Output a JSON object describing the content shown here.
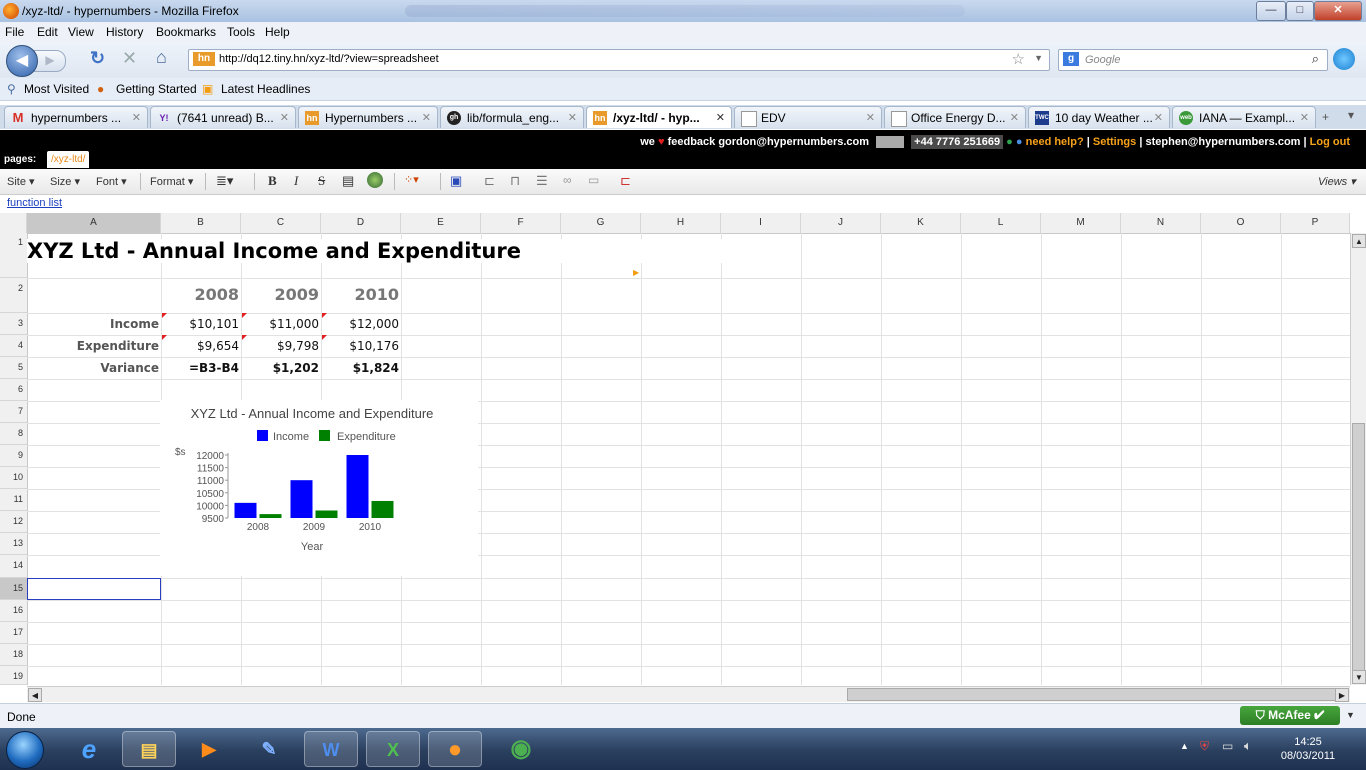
{
  "window": {
    "title": "/xyz-ltd/ - hypernumbers - Mozilla Firefox",
    "min": "—",
    "max": "□",
    "close": "✕"
  },
  "menu": [
    "File",
    "Edit",
    "View",
    "History",
    "Bookmarks",
    "Tools",
    "Help"
  ],
  "nav": {
    "url": "http://dq12.tiny.hn/xyz-ltd/?view=spreadsheet",
    "search_placeholder": "Google",
    "favicon": "hn"
  },
  "bookmarks": [
    "Most Visited",
    "Getting Started",
    "Latest Headlines"
  ],
  "tabs": [
    {
      "label": "hypernumbers ...",
      "icon": "M"
    },
    {
      "label": "(7641 unread) B...",
      "icon": "Y!"
    },
    {
      "label": "Hypernumbers ...",
      "icon": "hn"
    },
    {
      "label": "lib/formula_eng...",
      "icon": "gh"
    },
    {
      "label": "/xyz-ltd/ - hyp...",
      "icon": "hn"
    },
    {
      "label": "EDV",
      "icon": "doc"
    },
    {
      "label": "Office Energy D...",
      "icon": "doc"
    },
    {
      "label": "10 day Weather ...",
      "icon": "TWC"
    },
    {
      "label": "IANA — Exampl...",
      "icon": "web"
    }
  ],
  "header": {
    "we": "we",
    "feedback": "feedback gordon@hypernumbers.com",
    "phone": "+44 7776 251669",
    "help": "need help?",
    "settings": "Settings",
    "user": "stephen@hypernumbers.com",
    "logout": "Log out",
    "pages_label": "pages:",
    "page_tab": "/xyz-ltd/"
  },
  "toolbar": {
    "site": "Site ▾",
    "size": "Size ▾",
    "font": "Font ▾",
    "format": "Format ▾",
    "views": "Views ▾",
    "bold": "B",
    "italic": "I",
    "strike": "S"
  },
  "function_list": "function list",
  "columns": [
    "A",
    "B",
    "C",
    "D",
    "E",
    "F",
    "G",
    "H",
    "I",
    "J",
    "K",
    "L",
    "M",
    "N",
    "O",
    "P"
  ],
  "rows": [
    "1",
    "2",
    "3",
    "4",
    "5",
    "6",
    "7",
    "8",
    "9",
    "10",
    "11",
    "12",
    "13",
    "14",
    "15",
    "16",
    "17",
    "18",
    "19"
  ],
  "sheet": {
    "title": "XYZ Ltd - Annual Income and Expenditure",
    "years": [
      "2008",
      "2009",
      "2010"
    ],
    "income_label": "Income",
    "income": [
      "$10,101",
      "$11,000",
      "$12,000"
    ],
    "expenditure_label": "Expenditure",
    "expenditure": [
      "$9,654",
      "$9,798",
      "$10,176"
    ],
    "variance_label": "Variance",
    "variance": [
      "=B3-B4",
      "$1,202",
      "$1,824"
    ]
  },
  "chart_data": {
    "type": "bar",
    "title": "XYZ Ltd - Annual Income and Expenditure",
    "categories": [
      "2008",
      "2009",
      "2010"
    ],
    "series": [
      {
        "name": "Income",
        "values": [
          10101,
          11000,
          12000
        ],
        "color": "#0000ff"
      },
      {
        "name": "Expenditure",
        "values": [
          9654,
          9798,
          10176
        ],
        "color": "#008000"
      }
    ],
    "xlabel": "Year",
    "ylabel": "$s",
    "yticks": [
      9500,
      10000,
      10500,
      11000,
      11500,
      12000
    ],
    "ylim": [
      9500,
      12000
    ],
    "legend": "top"
  },
  "status": {
    "text": "Done",
    "mcafee": "McAfee"
  },
  "clock": {
    "time": "14:25",
    "date": "08/03/2011"
  }
}
